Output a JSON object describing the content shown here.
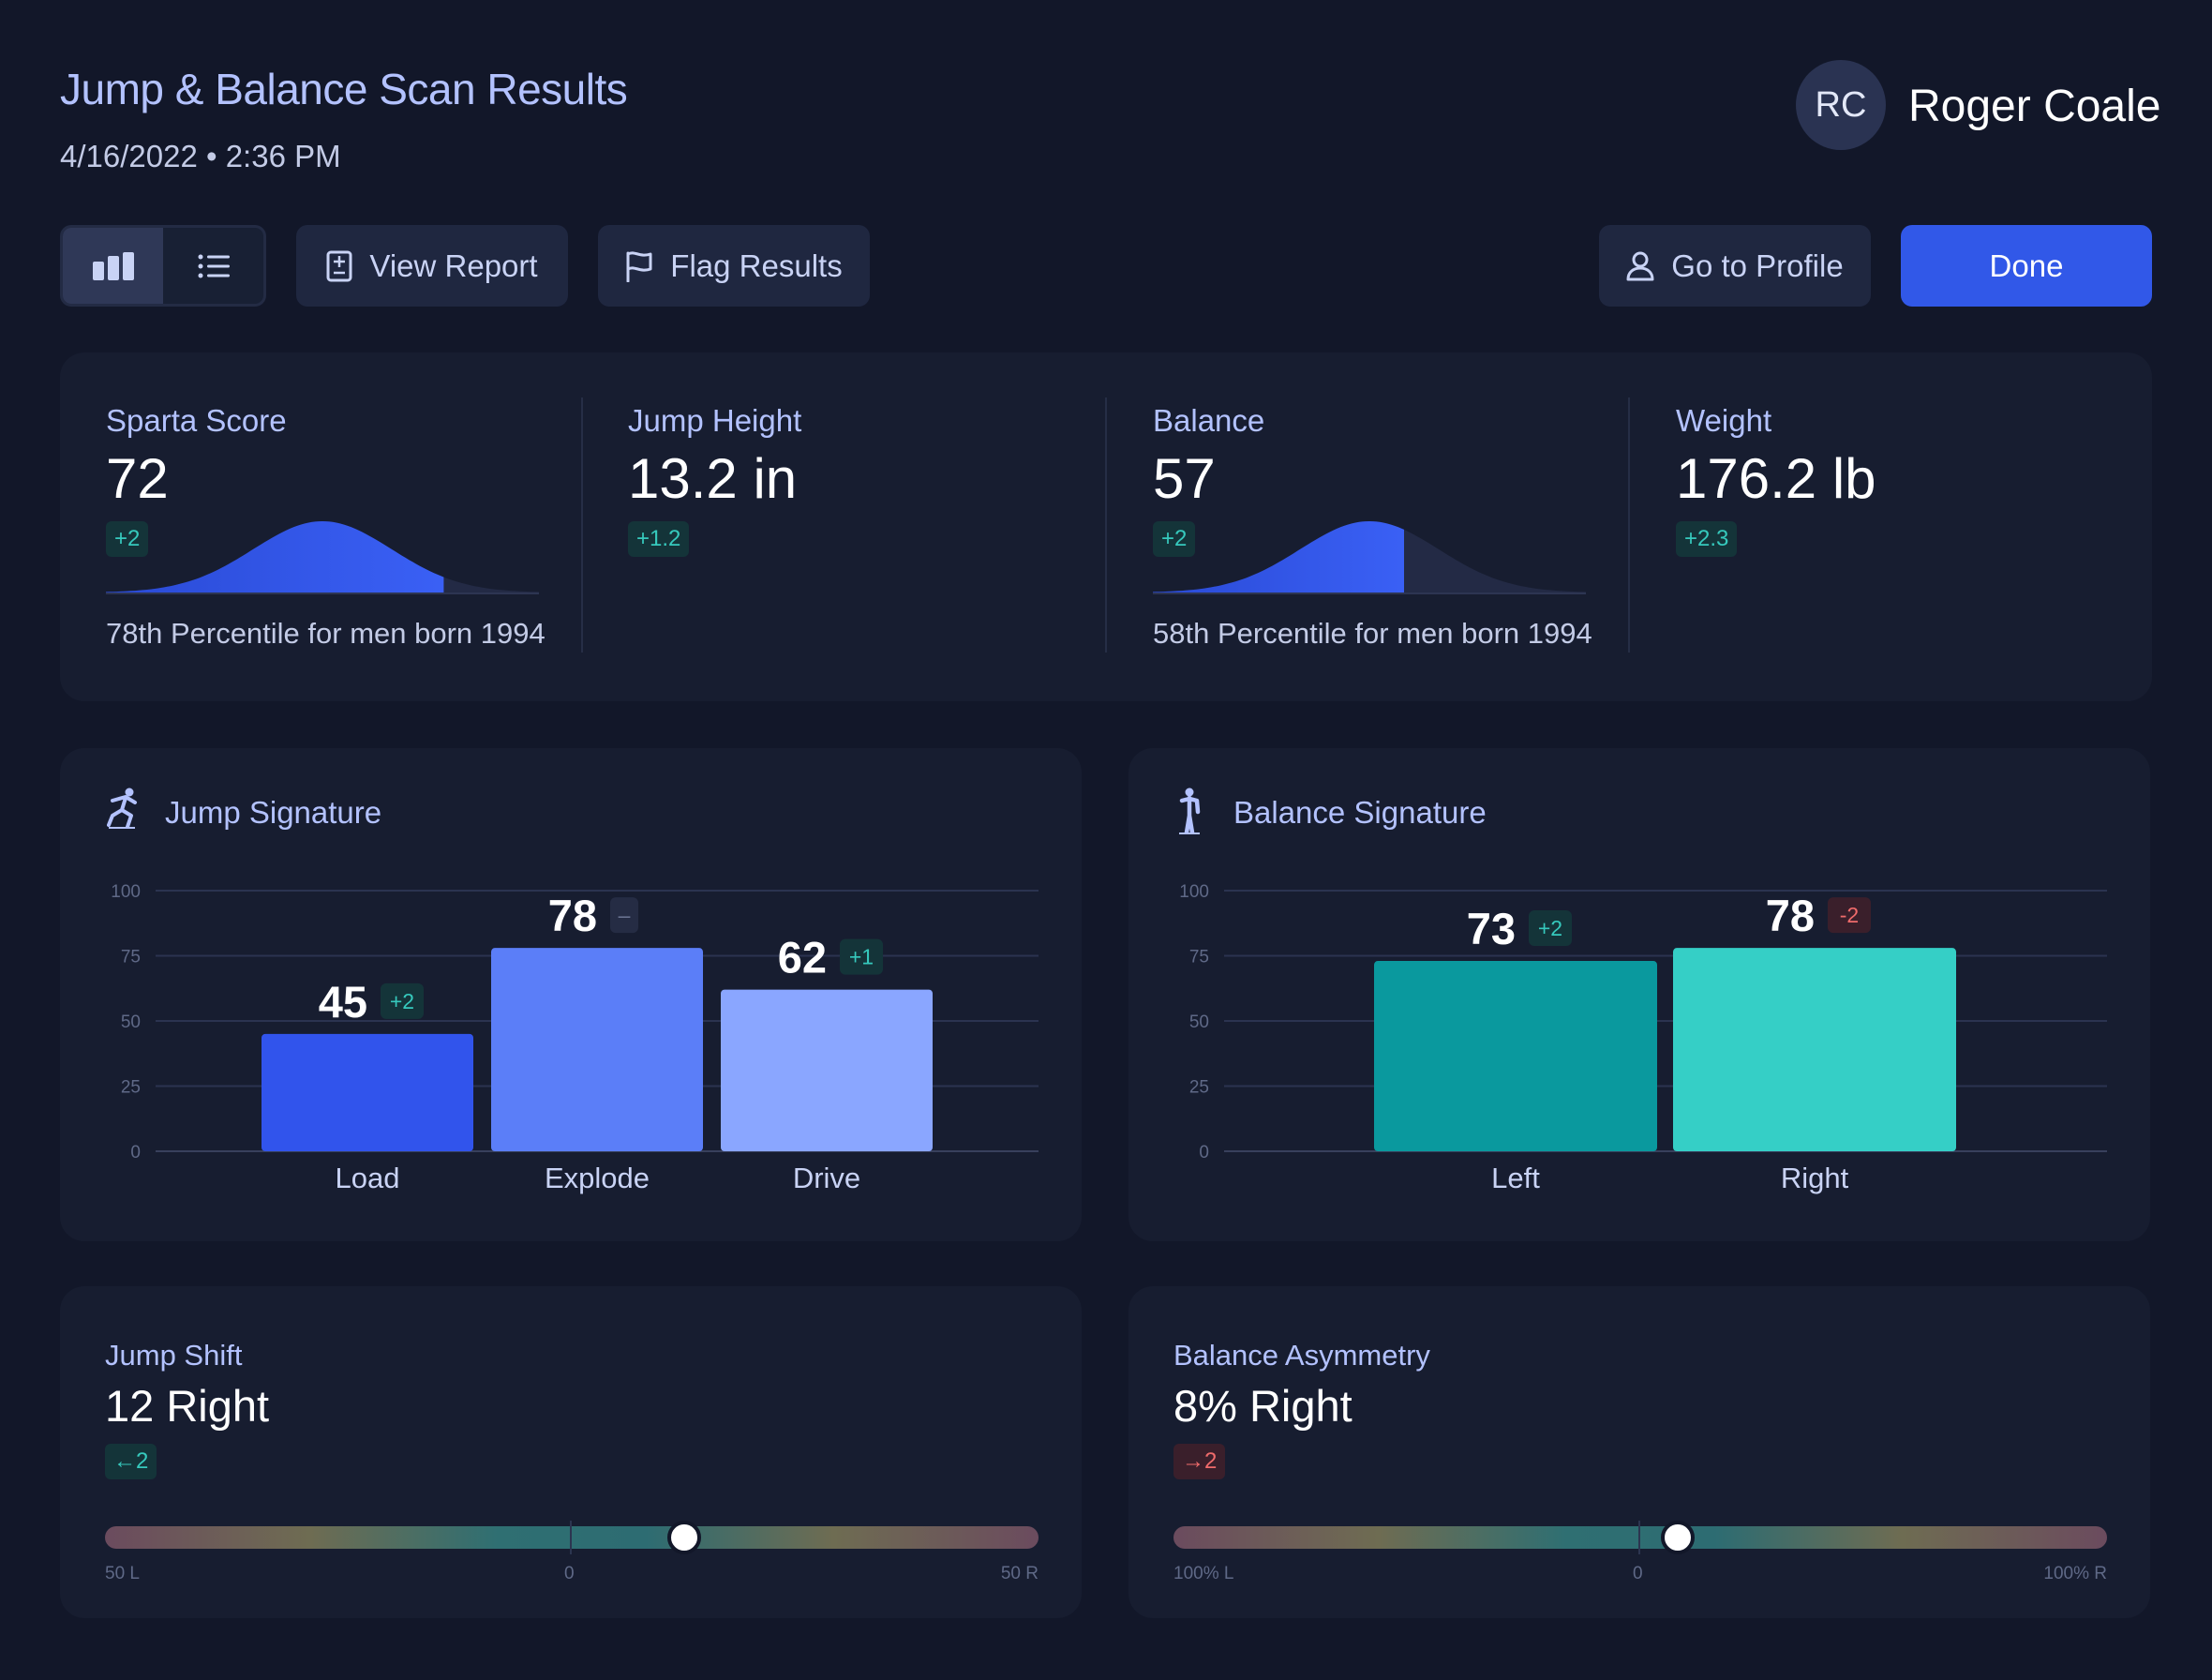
{
  "header": {
    "title": "Jump & Balance Scan Results",
    "date": "4/16/2022 • 2:36 PM",
    "user": {
      "initials": "RC",
      "name": "Roger Coale"
    }
  },
  "toolbar": {
    "view_toggle": {
      "active": "chart-view",
      "options": [
        "chart-view",
        "list-view"
      ]
    },
    "view_report": "View Report",
    "flag_results": "Flag Results",
    "go_to_profile": "Go to Profile",
    "done": "Done"
  },
  "stats": [
    {
      "label": "Sparta Score",
      "value": "72",
      "delta": "+2",
      "percentile_text": "78th Percentile for men born 1994",
      "percentile": 78
    },
    {
      "label": "Jump Height",
      "value": "13.2 in",
      "delta": "+1.2"
    },
    {
      "label": "Balance",
      "value": "57",
      "delta": "+2",
      "percentile_text": "58th Percentile for men born 1994",
      "percentile": 58
    },
    {
      "label": "Weight",
      "value": "176.2 lb",
      "delta": "+2.3"
    }
  ],
  "jump_signature": {
    "title": "Jump Signature",
    "icon": "jumper-icon",
    "chart_data": {
      "type": "bar",
      "categories": [
        "Load",
        "Explode",
        "Drive"
      ],
      "values": [
        45,
        78,
        62
      ],
      "deltas": [
        "+2",
        "–",
        "+1"
      ],
      "delta_kinds": [
        "pos",
        "neu",
        "pos"
      ],
      "colors": [
        "#3154ec",
        "#5b7ef8",
        "#8aa6ff"
      ],
      "ylim": [
        0,
        100
      ],
      "yticks": [
        "0",
        "25",
        "50",
        "75",
        "100"
      ],
      "grid": true
    }
  },
  "balance_signature": {
    "title": "Balance Signature",
    "icon": "standing-person-icon",
    "chart_data": {
      "type": "bar",
      "categories": [
        "Left",
        "Right"
      ],
      "values": [
        73,
        78
      ],
      "deltas": [
        "+2",
        "-2"
      ],
      "delta_kinds": [
        "pos",
        "neg"
      ],
      "colors": [
        "#0a999e",
        "#35cfc6"
      ],
      "ylim": [
        0,
        100
      ],
      "yticks": [
        "0",
        "25",
        "50",
        "75",
        "100"
      ],
      "grid": true
    }
  },
  "jump_shift": {
    "label": "Jump Shift",
    "value": "12 Right",
    "delta": "←2",
    "delta_kind": "pos",
    "scale": {
      "left": "50 L",
      "center": "0",
      "right": "50 R",
      "min": -50,
      "max": 50,
      "position": 12
    }
  },
  "balance_asymmetry": {
    "label": "Balance Asymmetry",
    "value": "8% Right",
    "delta": "→2",
    "delta_kind": "neg",
    "scale": {
      "left": "100% L",
      "center": "0",
      "right": "100% R",
      "min": -100,
      "max": 100,
      "position": 8
    }
  },
  "colors": {
    "background": "#121729",
    "card": "#171d30",
    "accent": "#3158e8",
    "label": "#b3c2ff",
    "positive": "#36c9bd",
    "negative": "#ef6b6b"
  }
}
